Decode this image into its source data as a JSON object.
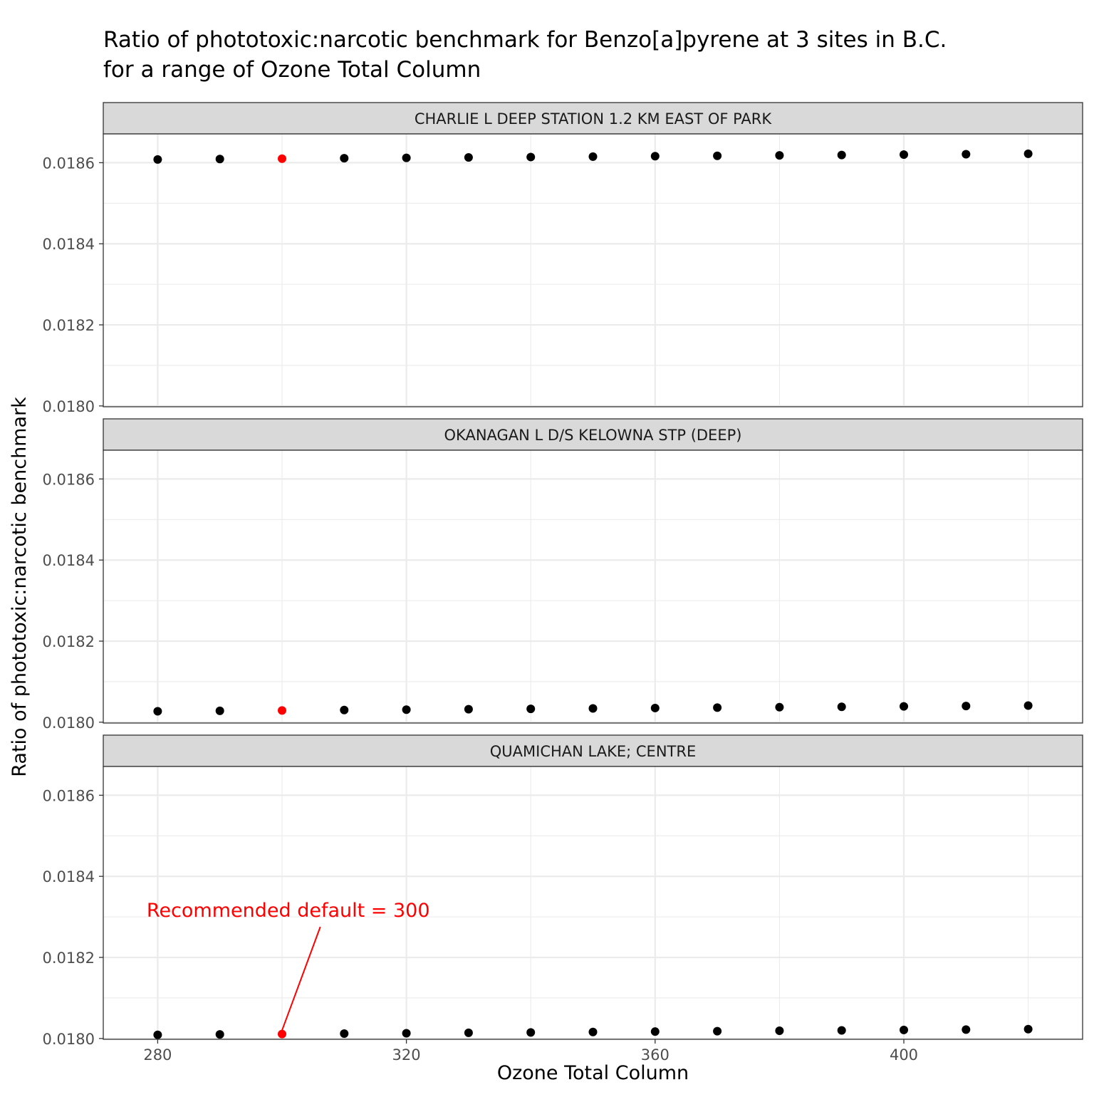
{
  "chart_data": {
    "type": "scatter",
    "title_lines": [
      "Ratio of phototoxic:narcotic benchmark for Benzo[a]pyrene at 3 sites in B.C.",
      "for a range of Ozone Total Column"
    ],
    "xlabel": "Ozone Total Column",
    "ylabel": "Ratio of phototoxic:narcotic benchmark",
    "xlim": [
      271.25,
      428.75
    ],
    "ylim": [
      0.017998,
      0.018671
    ],
    "x_ticks": [
      280,
      320,
      360,
      400
    ],
    "y_ticks": [
      0.018,
      0.0182,
      0.0184,
      0.0186
    ],
    "y_tick_labels": [
      "0.0180",
      "0.0182",
      "0.0184",
      "0.0186"
    ],
    "grid": true,
    "highlight_x": 300,
    "colors": {
      "point": "#000000",
      "highlight": "#ff0000",
      "strip": "#d9d9d9",
      "grid": "#ebebeb",
      "border": "#333333"
    },
    "annotation": {
      "text": "Recommended default = 300",
      "panel": 2,
      "x": 301,
      "y": 0.0183,
      "target_x": 300,
      "target_y": 0.018013
    },
    "x": [
      280,
      290,
      300,
      310,
      320,
      330,
      340,
      350,
      360,
      370,
      380,
      390,
      400,
      410,
      420
    ],
    "panels": [
      {
        "label": "CHARLIE L DEEP STATION 1.2 KM EAST OF PARK",
        "values": [
          0.018608,
          0.018609,
          0.01861,
          0.018611,
          0.018612,
          0.018613,
          0.018614,
          0.018615,
          0.018616,
          0.018617,
          0.018618,
          0.018619,
          0.01862,
          0.018621,
          0.018622
        ]
      },
      {
        "label": "OKANAGAN L D/S KELOWNA STP (DEEP)",
        "values": [
          0.018027,
          0.018028,
          0.018029,
          0.01803,
          0.018031,
          0.018032,
          0.018033,
          0.018034,
          0.018035,
          0.018036,
          0.018037,
          0.018038,
          0.018039,
          0.01804,
          0.018041
        ]
      },
      {
        "label": "QUAMICHAN LAKE; CENTRE",
        "values": [
          0.018009,
          0.01801,
          0.018011,
          0.018012,
          0.018013,
          0.018014,
          0.018015,
          0.018016,
          0.018017,
          0.018018,
          0.018019,
          0.01802,
          0.018021,
          0.018022,
          0.018023
        ]
      }
    ]
  }
}
